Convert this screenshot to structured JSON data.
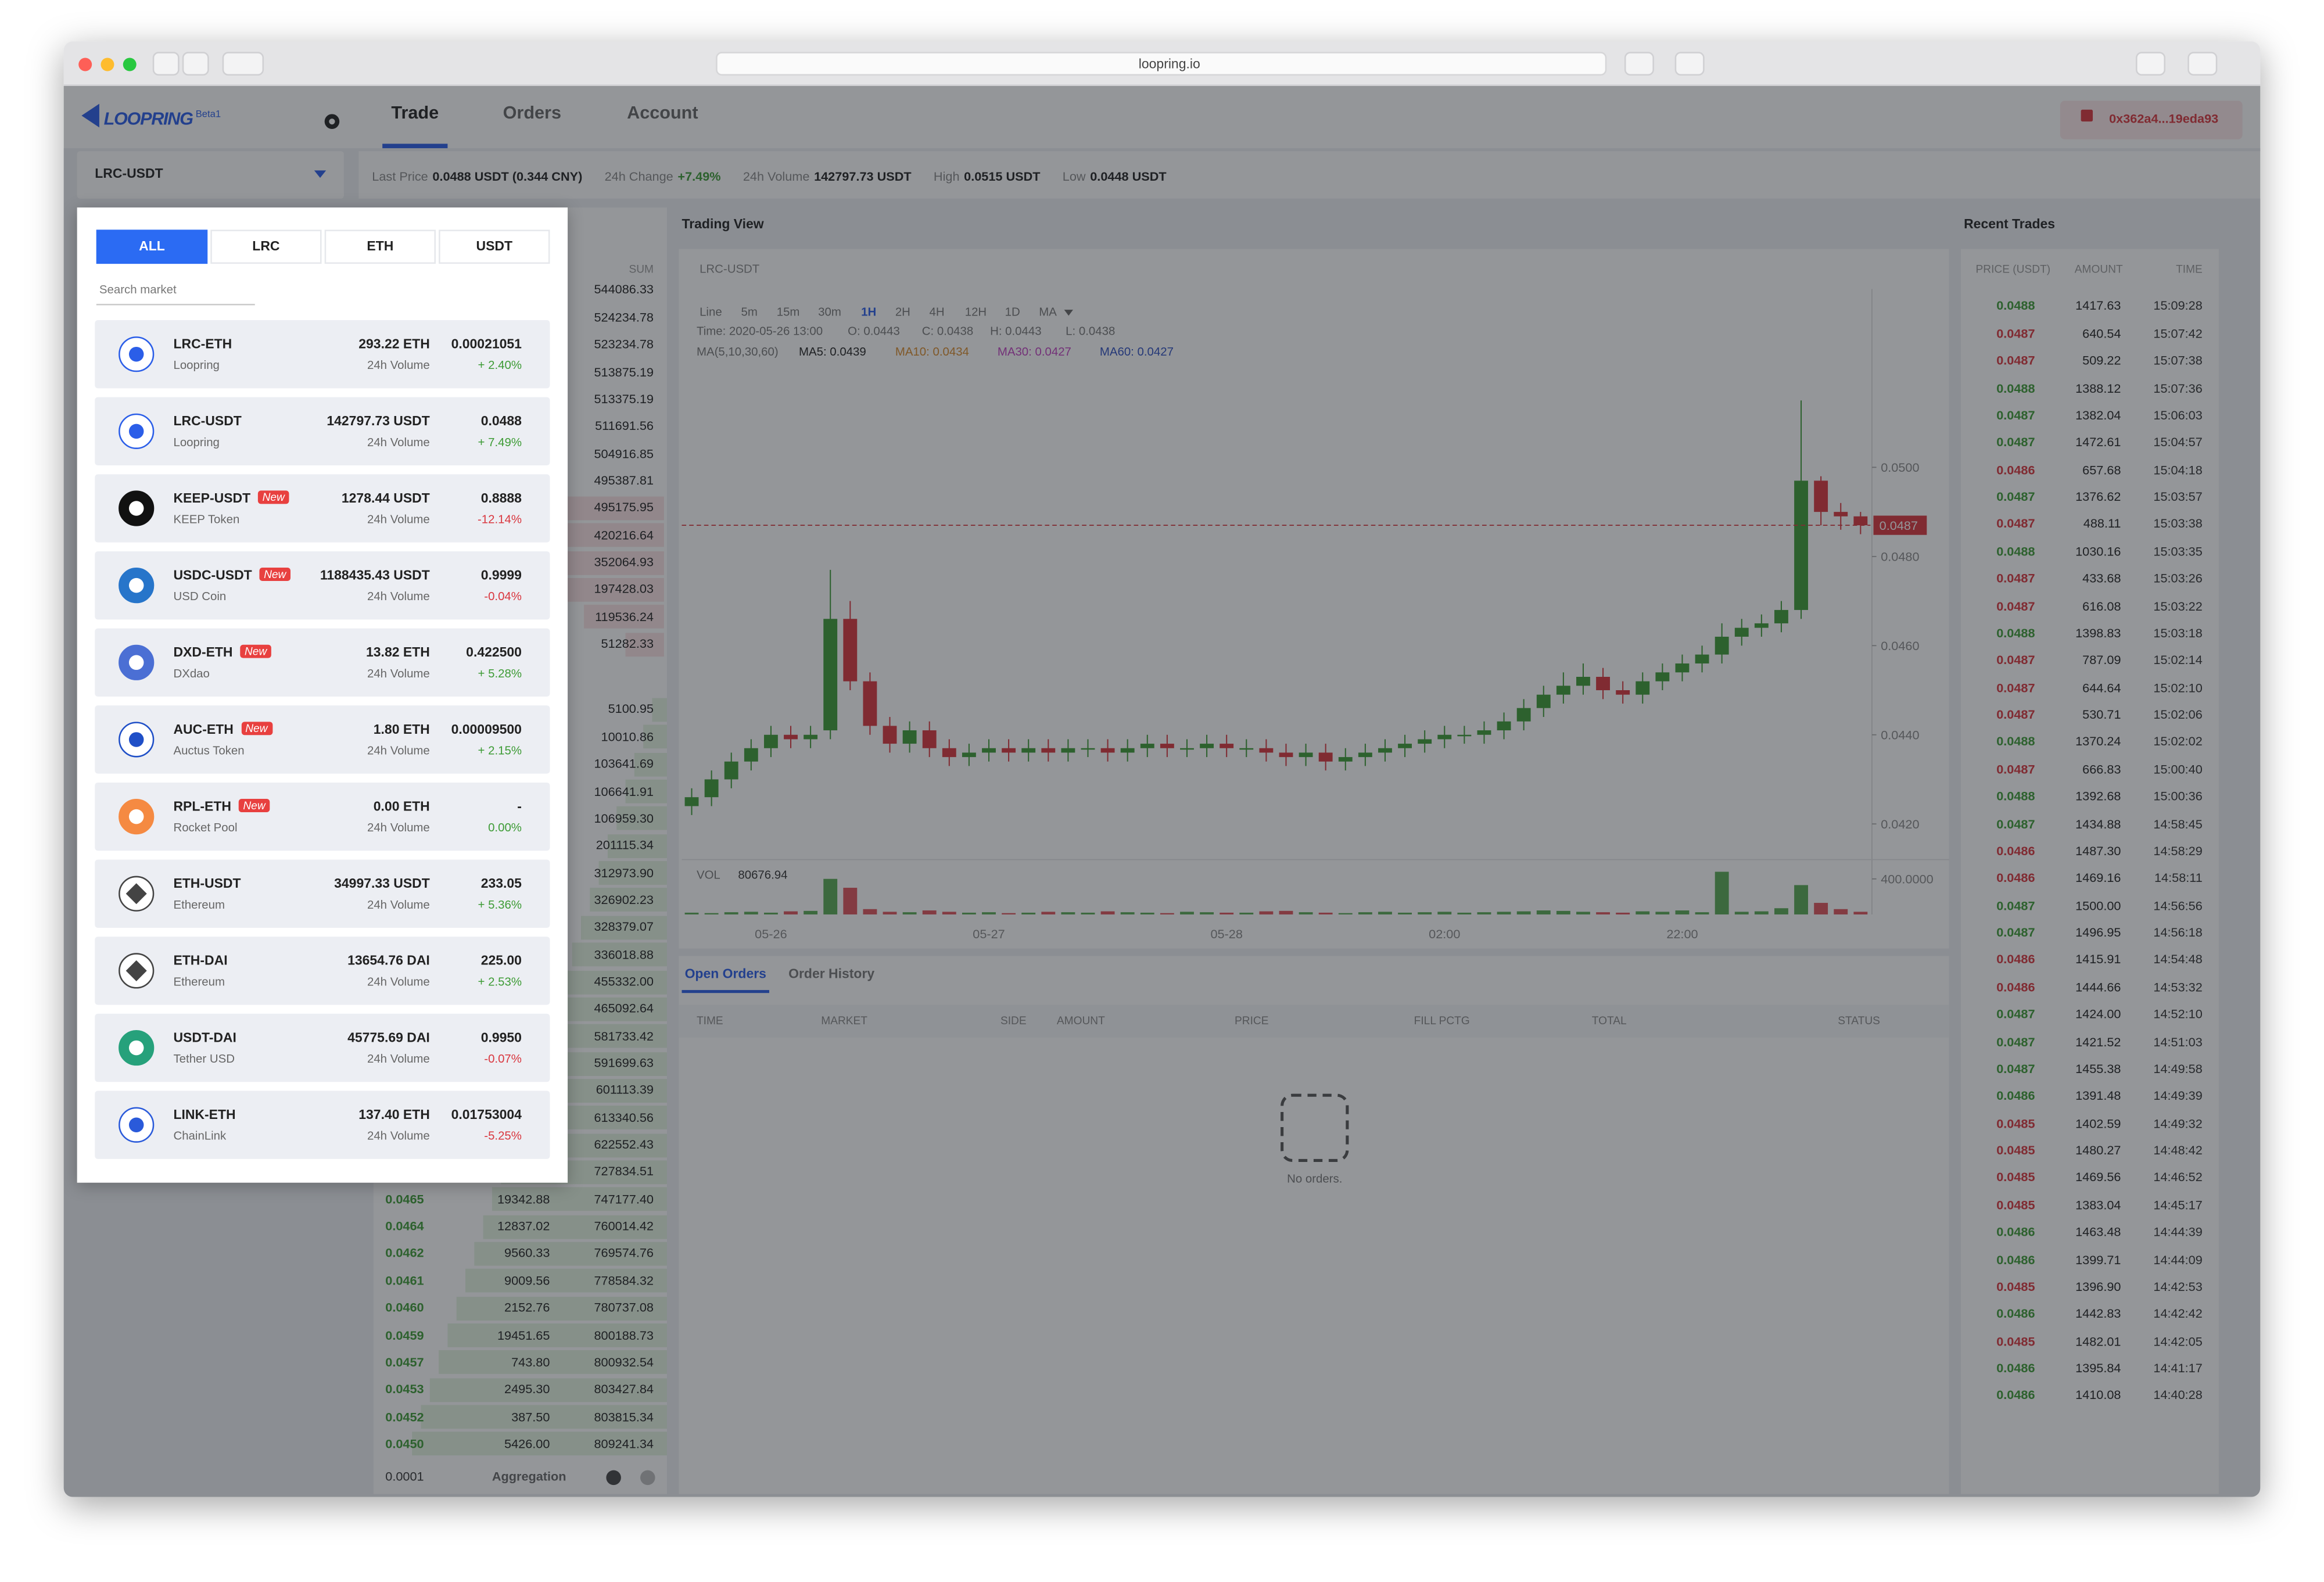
{
  "browser": {
    "url": "loopring.io"
  },
  "header": {
    "brand": "LOOPRING",
    "badge": "Beta1",
    "tabs": [
      "Trade",
      "Orders",
      "Account"
    ],
    "wallet": "0x362a4...19eda93"
  },
  "market_selector": "LRC-USDT",
  "ticker": [
    {
      "label": "Last Price",
      "value": "0.0488 USDT (0.344 CNY)",
      "color": "#222222"
    },
    {
      "label": "24h Change",
      "value": "+7.49%",
      "color": "#3d9b35"
    },
    {
      "label": "24h Volume",
      "value": "142797.73 USDT",
      "color": "#222222"
    },
    {
      "label": "High",
      "value": "0.0515 USDT",
      "color": "#222222"
    },
    {
      "label": "Low",
      "value": "0.0448 USDT",
      "color": "#222222"
    }
  ],
  "market_dropdown": {
    "tabs": [
      "ALL",
      "LRC",
      "ETH",
      "USDT"
    ],
    "search_placeholder": "Search market",
    "volume_label": "24h Volume",
    "badge": "New",
    "markets": [
      {
        "pair": "LRC-ETH",
        "name": "Loopring",
        "new": false,
        "volume": "293.22 ETH",
        "price": "0.00021051",
        "change": "+ 2.40%",
        "change_color": "#3d9b35"
      },
      {
        "pair": "LRC-USDT",
        "name": "Loopring",
        "new": false,
        "volume": "142797.73 USDT",
        "price": "0.0488",
        "change": "+ 7.49%",
        "change_color": "#3d9b35"
      },
      {
        "pair": "KEEP-USDT",
        "name": "KEEP Token",
        "new": true,
        "volume": "1278.44 USDT",
        "price": "0.8888",
        "change": "-12.14%",
        "change_color": "#d9363e"
      },
      {
        "pair": "USDC-USDT",
        "name": "USD Coin",
        "new": true,
        "volume": "1188435.43 USDT",
        "price": "0.9999",
        "change": "-0.04%",
        "change_color": "#d9363e"
      },
      {
        "pair": "DXD-ETH",
        "name": "DXdao",
        "new": true,
        "volume": "13.82 ETH",
        "price": "0.422500",
        "change": "+ 5.28%",
        "change_color": "#3d9b35"
      },
      {
        "pair": "AUC-ETH",
        "name": "Auctus Token",
        "new": true,
        "volume": "1.80 ETH",
        "price": "0.00009500",
        "change": "+ 2.15%",
        "change_color": "#3d9b35"
      },
      {
        "pair": "RPL-ETH",
        "name": "Rocket Pool",
        "new": true,
        "volume": "0.00 ETH",
        "price": "-",
        "change": "0.00%",
        "change_color": "#3d9b35"
      },
      {
        "pair": "ETH-USDT",
        "name": "Ethereum",
        "new": false,
        "volume": "34997.33 USDT",
        "price": "233.05",
        "change": "+ 5.36%",
        "change_color": "#3d9b35"
      },
      {
        "pair": "ETH-DAI",
        "name": "Ethereum",
        "new": false,
        "volume": "13654.76 DAI",
        "price": "225.00",
        "change": "+ 2.53%",
        "change_color": "#3d9b35"
      },
      {
        "pair": "USDT-DAI",
        "name": "Tether USD",
        "new": false,
        "volume": "45775.69 DAI",
        "price": "0.9950",
        "change": "-0.07%",
        "change_color": "#d9363e"
      },
      {
        "pair": "LINK-ETH",
        "name": "ChainLink",
        "new": false,
        "volume": "137.40 ETH",
        "price": "0.01753004",
        "change": "-5.25%",
        "change_color": "#d9363e"
      }
    ]
  },
  "order_book": {
    "sum_header": "SUM",
    "aggregation_value": "0.0001",
    "aggregation_label": "Aggregation",
    "asks": [
      "544086.33",
      "524234.78",
      "523234.78",
      "513875.19",
      "513375.19",
      "511691.56",
      "504916.85",
      "495387.81",
      "495175.95",
      "420216.64",
      "352064.93",
      "197428.03",
      "119536.24",
      "51282.33"
    ],
    "bids": [
      {
        "sum": "5100.95"
      },
      {
        "sum": "10010.86"
      },
      {
        "sum": "103641.69"
      },
      {
        "sum": "106641.91"
      },
      {
        "sum": "106959.30"
      },
      {
        "sum": "201115.34"
      },
      {
        "sum": "312973.90"
      },
      {
        "sum": "326902.23"
      },
      {
        "sum": "328379.07"
      },
      {
        "sum": "336018.88"
      },
      {
        "sum": "455332.00"
      },
      {
        "sum": "465092.64"
      },
      {
        "sum": "581733.42"
      },
      {
        "sum": "591699.63"
      },
      {
        "sum": "601113.39"
      },
      {
        "sum": "613340.56"
      },
      {
        "sum": "622552.43"
      },
      {
        "sum": "727834.51"
      },
      {
        "price": "0.0465",
        "amount": "19342.88",
        "sum": "747177.40"
      },
      {
        "price": "0.0464",
        "amount": "12837.02",
        "sum": "760014.42"
      },
      {
        "price": "0.0462",
        "amount": "9560.33",
        "sum": "769574.76"
      },
      {
        "price": "0.0461",
        "amount": "9009.56",
        "sum": "778584.32"
      },
      {
        "price": "0.0460",
        "amount": "2152.76",
        "sum": "780737.08"
      },
      {
        "price": "0.0459",
        "amount": "19451.65",
        "sum": "800188.73"
      },
      {
        "price": "0.0457",
        "amount": "743.80",
        "sum": "800932.54"
      },
      {
        "price": "0.0453",
        "amount": "2495.30",
        "sum": "803427.84"
      },
      {
        "price": "0.0452",
        "amount": "387.50",
        "sum": "803815.34"
      },
      {
        "price": "0.0450",
        "amount": "5426.00",
        "sum": "809241.34"
      }
    ]
  },
  "trading_view": {
    "title": "Trading View",
    "pair": "LRC-USDT",
    "intervals": [
      "Line",
      "5m",
      "15m",
      "30m",
      "1H",
      "2H",
      "4H",
      "12H",
      "1D",
      "MA"
    ],
    "active_interval": "1H",
    "info": [
      "Time: 2020-05-26 13:00",
      "O: 0.0443",
      "C: 0.0438",
      "H: 0.0443",
      "L: 0.0438"
    ],
    "ma_title": "MA(5,10,30,60)",
    "ma": [
      {
        "label": "MA5: 0.0439",
        "color": "#222222"
      },
      {
        "label": "MA10: 0.0434",
        "color": "#d98b2b"
      },
      {
        "label": "MA30: 0.0427",
        "color": "#c040c0"
      },
      {
        "label": "MA60: 0.0427",
        "color": "#2f4fc0"
      }
    ]
  },
  "chart_data": {
    "type": "candlestick",
    "up_color": "#3d9b35",
    "down_color": "#d9363e",
    "x": [
      null,
      null,
      null,
      null,
      "05-26",
      null,
      null,
      null,
      null,
      null,
      null,
      null,
      null,
      null,
      null,
      "05-27",
      null,
      null,
      null,
      null,
      null,
      null,
      null,
      null,
      null,
      null,
      null,
      "05-28",
      null,
      null,
      null,
      null,
      null,
      null,
      null,
      null,
      null,
      null,
      "02:00",
      null,
      null,
      null,
      null,
      null,
      null,
      null,
      null,
      null,
      null,
      null,
      "22:00",
      null,
      null,
      null,
      null,
      null,
      null,
      null,
      null,
      null
    ],
    "open": [
      0.0424,
      0.0426,
      0.043,
      0.0434,
      0.0437,
      0.044,
      0.0439,
      0.0441,
      0.0466,
      0.0452,
      0.0442,
      0.0438,
      0.0441,
      0.0437,
      0.0435,
      0.0436,
      0.0437,
      0.0436,
      0.0437,
      0.0436,
      0.0437,
      0.0437,
      0.0436,
      0.0437,
      0.0438,
      0.0437,
      0.0437,
      0.0438,
      0.0437,
      0.0437,
      0.0436,
      0.0435,
      0.0436,
      0.0434,
      0.0435,
      0.0436,
      0.0437,
      0.0438,
      0.0439,
      0.044,
      0.044,
      0.0441,
      0.0443,
      0.0446,
      0.0449,
      0.0451,
      0.0453,
      0.045,
      0.0449,
      0.0452,
      0.0454,
      0.0456,
      0.0458,
      0.0462,
      0.0464,
      0.0465,
      0.0468,
      0.0497,
      0.049,
      0.0489
    ],
    "high": [
      0.0428,
      0.0432,
      0.0436,
      0.0439,
      0.0442,
      0.0442,
      0.0442,
      0.0477,
      0.047,
      0.0454,
      0.0444,
      0.0443,
      0.0443,
      0.0439,
      0.0438,
      0.0439,
      0.0439,
      0.0439,
      0.0439,
      0.0439,
      0.0439,
      0.0439,
      0.0439,
      0.044,
      0.044,
      0.0439,
      0.044,
      0.044,
      0.0439,
      0.0439,
      0.0438,
      0.0438,
      0.0438,
      0.0437,
      0.0438,
      0.0439,
      0.044,
      0.0441,
      0.0442,
      0.0442,
      0.0443,
      0.0445,
      0.0448,
      0.0451,
      0.0454,
      0.0456,
      0.0455,
      0.0452,
      0.0454,
      0.0456,
      0.0458,
      0.046,
      0.0465,
      0.0466,
      0.0467,
      0.047,
      0.0515,
      0.0498,
      0.0492,
      0.049
    ],
    "low": [
      0.0422,
      0.0424,
      0.0428,
      0.0432,
      0.0435,
      0.0437,
      0.0437,
      0.0439,
      0.045,
      0.044,
      0.0436,
      0.0436,
      0.0435,
      0.0433,
      0.0433,
      0.0434,
      0.0434,
      0.0434,
      0.0434,
      0.0434,
      0.0435,
      0.0434,
      0.0434,
      0.0435,
      0.0435,
      0.0435,
      0.0435,
      0.0435,
      0.0435,
      0.0434,
      0.0433,
      0.0433,
      0.0432,
      0.0432,
      0.0433,
      0.0434,
      0.0435,
      0.0436,
      0.0437,
      0.0438,
      0.0438,
      0.0439,
      0.0441,
      0.0444,
      0.0447,
      0.0449,
      0.0448,
      0.0447,
      0.0447,
      0.045,
      0.0452,
      0.0454,
      0.0456,
      0.046,
      0.0462,
      0.0463,
      0.0466,
      0.0487,
      0.0486,
      0.0485
    ],
    "close": [
      0.0426,
      0.043,
      0.0434,
      0.0437,
      0.044,
      0.0439,
      0.044,
      0.0466,
      0.0452,
      0.0442,
      0.0438,
      0.0441,
      0.0437,
      0.0435,
      0.0436,
      0.0437,
      0.0436,
      0.0437,
      0.0436,
      0.0437,
      0.0437,
      0.0436,
      0.0437,
      0.0438,
      0.0437,
      0.0437,
      0.0438,
      0.0437,
      0.0437,
      0.0436,
      0.0435,
      0.0436,
      0.0434,
      0.0435,
      0.0436,
      0.0437,
      0.0438,
      0.0439,
      0.044,
      0.044,
      0.0441,
      0.0443,
      0.0446,
      0.0449,
      0.0451,
      0.0453,
      0.045,
      0.0449,
      0.0452,
      0.0454,
      0.0456,
      0.0458,
      0.0462,
      0.0464,
      0.0465,
      0.0468,
      0.0497,
      0.049,
      0.0489,
      0.0487
    ],
    "volume": [
      20,
      15,
      25,
      30,
      20,
      35,
      40,
      400,
      300,
      60,
      30,
      25,
      45,
      30,
      20,
      25,
      15,
      20,
      30,
      25,
      20,
      35,
      25,
      20,
      15,
      30,
      25,
      20,
      20,
      35,
      40,
      25,
      20,
      15,
      25,
      30,
      20,
      25,
      30,
      20,
      25,
      30,
      35,
      45,
      40,
      30,
      25,
      20,
      35,
      30,
      45,
      25,
      480,
      30,
      35,
      70,
      330,
      130,
      60,
      30
    ],
    "ylim": [
      0.0412,
      0.054
    ],
    "yticks": [
      {
        "value": 0.05,
        "label": "0.0500"
      },
      {
        "value": 0.048,
        "label": "0.0480"
      },
      {
        "value": 0.046,
        "label": "0.0460"
      },
      {
        "value": 0.044,
        "label": "0.0440"
      },
      {
        "value": 0.042,
        "label": "0.0420"
      }
    ],
    "last_price": {
      "value": 0.0487,
      "label": "0.0487"
    },
    "volume_label": "VOL",
    "volume_value": "80676.94",
    "volume_lim": [
      0,
      500
    ],
    "volume_ticks": [
      {
        "value": 400,
        "label": "400.0000"
      }
    ]
  },
  "orders": {
    "tabs": [
      "Open Orders",
      "Order History"
    ],
    "columns": [
      "TIME",
      "MARKET",
      "SIDE",
      "AMOUNT",
      "PRICE",
      "FILL PCTG",
      "TOTAL",
      "STATUS"
    ],
    "empty": "No orders."
  },
  "recent_trades": {
    "title": "Recent Trades",
    "columns": [
      "PRICE (USDT)",
      "AMOUNT",
      "TIME"
    ],
    "rows": [
      [
        "0.0488",
        "1417.63",
        "15:09:28",
        "#3d9b35"
      ],
      [
        "0.0487",
        "640.54",
        "15:07:42",
        "#d9363e"
      ],
      [
        "0.0487",
        "509.22",
        "15:07:38",
        "#d9363e"
      ],
      [
        "0.0488",
        "1388.12",
        "15:07:36",
        "#3d9b35"
      ],
      [
        "0.0487",
        "1382.04",
        "15:06:03",
        "#3d9b35"
      ],
      [
        "0.0487",
        "1472.61",
        "15:04:57",
        "#3d9b35"
      ],
      [
        "0.0486",
        "657.68",
        "15:04:18",
        "#d9363e"
      ],
      [
        "0.0487",
        "1376.62",
        "15:03:57",
        "#3d9b35"
      ],
      [
        "0.0487",
        "488.11",
        "15:03:38",
        "#d9363e"
      ],
      [
        "0.0488",
        "1030.16",
        "15:03:35",
        "#3d9b35"
      ],
      [
        "0.0487",
        "433.68",
        "15:03:26",
        "#d9363e"
      ],
      [
        "0.0487",
        "616.08",
        "15:03:22",
        "#d9363e"
      ],
      [
        "0.0488",
        "1398.83",
        "15:03:18",
        "#3d9b35"
      ],
      [
        "0.0487",
        "787.09",
        "15:02:14",
        "#d9363e"
      ],
      [
        "0.0487",
        "644.64",
        "15:02:10",
        "#d9363e"
      ],
      [
        "0.0487",
        "530.71",
        "15:02:06",
        "#d9363e"
      ],
      [
        "0.0488",
        "1370.24",
        "15:02:02",
        "#3d9b35"
      ],
      [
        "0.0487",
        "666.83",
        "15:00:40",
        "#d9363e"
      ],
      [
        "0.0488",
        "1392.68",
        "15:00:36",
        "#3d9b35"
      ],
      [
        "0.0487",
        "1434.88",
        "14:58:45",
        "#3d9b35"
      ],
      [
        "0.0486",
        "1487.30",
        "14:58:29",
        "#d9363e"
      ],
      [
        "0.0486",
        "1469.16",
        "14:58:11",
        "#d9363e"
      ],
      [
        "0.0487",
        "1500.00",
        "14:56:56",
        "#3d9b35"
      ],
      [
        "0.0487",
        "1496.95",
        "14:56:18",
        "#3d9b35"
      ],
      [
        "0.0486",
        "1415.91",
        "14:54:48",
        "#d9363e"
      ],
      [
        "0.0486",
        "1444.66",
        "14:53:32",
        "#d9363e"
      ],
      [
        "0.0487",
        "1424.00",
        "14:52:10",
        "#3d9b35"
      ],
      [
        "0.0487",
        "1421.52",
        "14:51:03",
        "#3d9b35"
      ],
      [
        "0.0487",
        "1455.38",
        "14:49:58",
        "#3d9b35"
      ],
      [
        "0.0486",
        "1391.48",
        "14:49:39",
        "#3d9b35"
      ],
      [
        "0.0485",
        "1402.59",
        "14:49:32",
        "#d9363e"
      ],
      [
        "0.0485",
        "1480.27",
        "14:48:42",
        "#d9363e"
      ],
      [
        "0.0485",
        "1469.56",
        "14:46:52",
        "#d9363e"
      ],
      [
        "0.0485",
        "1383.04",
        "14:45:17",
        "#d9363e"
      ],
      [
        "0.0486",
        "1463.48",
        "14:44:39",
        "#3d9b35"
      ],
      [
        "0.0486",
        "1399.71",
        "14:44:09",
        "#3d9b35"
      ],
      [
        "0.0485",
        "1396.90",
        "14:42:53",
        "#d9363e"
      ],
      [
        "0.0486",
        "1442.83",
        "14:42:42",
        "#3d9b35"
      ],
      [
        "0.0485",
        "1482.01",
        "14:42:05",
        "#d9363e"
      ],
      [
        "0.0486",
        "1395.84",
        "14:41:17",
        "#3d9b35"
      ],
      [
        "0.0486",
        "1410.08",
        "14:40:28",
        "#3d9b35"
      ]
    ]
  }
}
